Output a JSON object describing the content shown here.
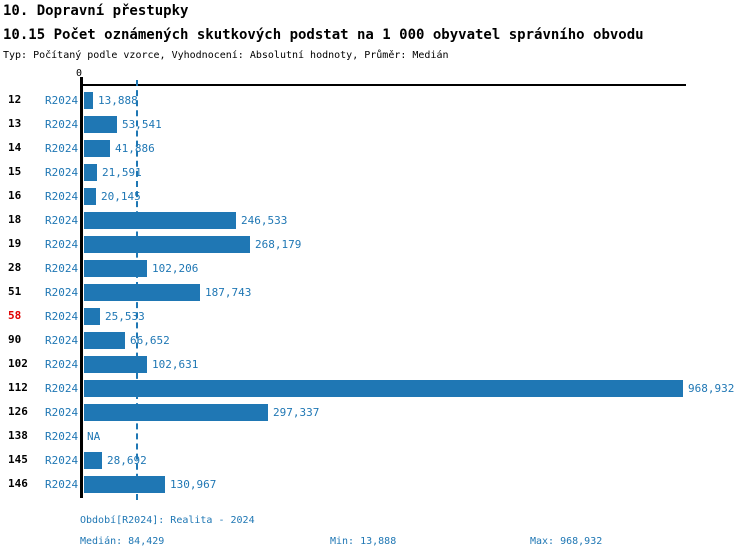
{
  "chart_data": {
    "type": "bar",
    "orientation": "horizontal",
    "title": "10. Dopravní přestupky",
    "subtitle": "10.15 Počet oznámených skutkových podstat na 1 000 obyvatel správního obvodu",
    "meta_line": "Typ: Počítaný podle vzorce, Vyhodnocení: Absolutní hodnoty, Průměr: Medián",
    "series_label": "R2024",
    "categories": [
      "12",
      "13",
      "14",
      "15",
      "16",
      "18",
      "19",
      "28",
      "51",
      "58",
      "90",
      "102",
      "112",
      "126",
      "138",
      "145",
      "146"
    ],
    "values": [
      13888,
      53541,
      41886,
      21591,
      20145,
      246533,
      268179,
      102206,
      187743,
      25533,
      66652,
      102631,
      968932,
      297337,
      null,
      28692,
      130967
    ],
    "value_labels": [
      "13,888",
      "53,541",
      "41,886",
      "21,591",
      "20,145",
      "246,533",
      "268,179",
      "102,206",
      "187,743",
      "25,533",
      "66,652",
      "102,631",
      "968,932",
      "297,337",
      "NA",
      "28,692",
      "130,967"
    ],
    "na_label": "NA",
    "highlighted_category": "58",
    "median_value": 84429,
    "x_axis": {
      "zero_tick_label": "0",
      "min": 0,
      "max": 968932,
      "grid": "median-dashed-line-only"
    },
    "legend": "none"
  },
  "footer": {
    "period": "Období[R2024]: Realita - 2024",
    "median": "Medián: 84,429",
    "min": "Min: 13,888",
    "max": "Max: 968,932"
  },
  "colors": {
    "bar": "#1f77b4",
    "series_text": "#1f77b4",
    "value_text": "#1f77b4",
    "footer_text": "#1f77b4",
    "median_line": "#1f77b4",
    "category_text": "#000000",
    "highlighted_category_text": "#e00000",
    "axis": "#000000",
    "background": "#ffffff"
  }
}
